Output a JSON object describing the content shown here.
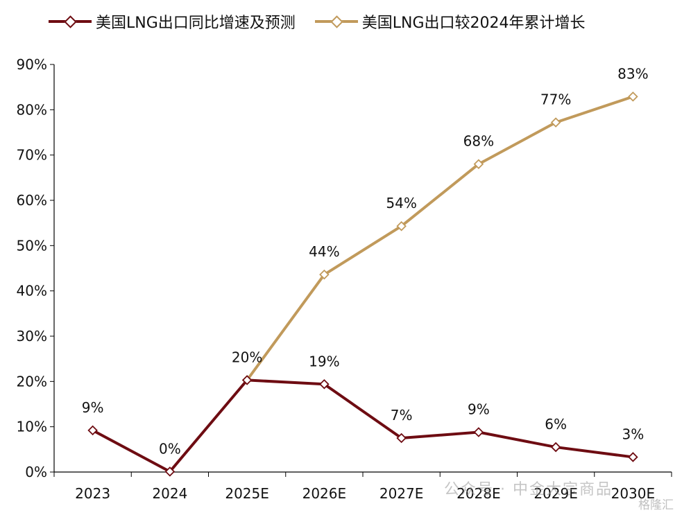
{
  "chart_data": {
    "type": "line",
    "categories": [
      "2023",
      "2024",
      "2025E",
      "2026E",
      "2027E",
      "2028E",
      "2029E",
      "2030E"
    ],
    "ylim": [
      0,
      90
    ],
    "yticks": [
      0,
      10,
      20,
      30,
      40,
      50,
      60,
      70,
      80,
      90
    ],
    "ytick_labels": [
      "0%",
      "10%",
      "20%",
      "30%",
      "40%",
      "50%",
      "60%",
      "70%",
      "80%",
      "90%"
    ],
    "legend_position": "top-left",
    "grid": false,
    "series": [
      {
        "name": "美国LNG出口同比增速及预测",
        "color": "#6e0c12",
        "values": [
          9.2,
          0.1,
          20.3,
          19.4,
          7.5,
          8.8,
          5.5,
          3.3
        ],
        "labels": [
          "9%",
          "0%",
          "20%",
          "19%",
          "7%",
          "9%",
          "6%",
          "3%"
        ]
      },
      {
        "name": "美国LNG出口较2024年累计增长",
        "color": "#c19a5b",
        "values": [
          null,
          null,
          20.3,
          43.6,
          54.3,
          68.0,
          77.2,
          82.9
        ],
        "labels": [
          null,
          null,
          "20%",
          "44%",
          "54%",
          "68%",
          "77%",
          "83%"
        ]
      }
    ]
  },
  "watermark": {
    "text": "公众号 · 中金大宗商品",
    "logo_text": "格隆汇"
  }
}
